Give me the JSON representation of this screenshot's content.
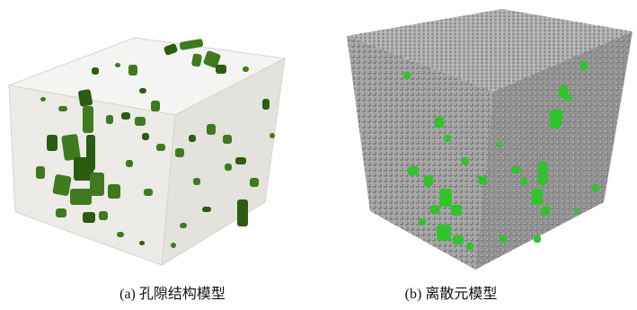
{
  "panels": [
    {
      "id": "a",
      "caption": "(a) 孔隙结构模型",
      "colors": {
        "top": "#f4f4f2",
        "left": "#ecebe7",
        "right": "#e3e2dd",
        "edge": "#d6d5d0",
        "pore": "#3f7a1e",
        "pore_dark": "#2c5c12"
      }
    },
    {
      "id": "b",
      "caption": "(b) 离散元模型",
      "colors": {
        "top": "#b9b9b9",
        "left": "#a9a9a9",
        "right": "#959595",
        "particle": "#8c8c8c",
        "highlight": "#2fc52a"
      }
    }
  ]
}
